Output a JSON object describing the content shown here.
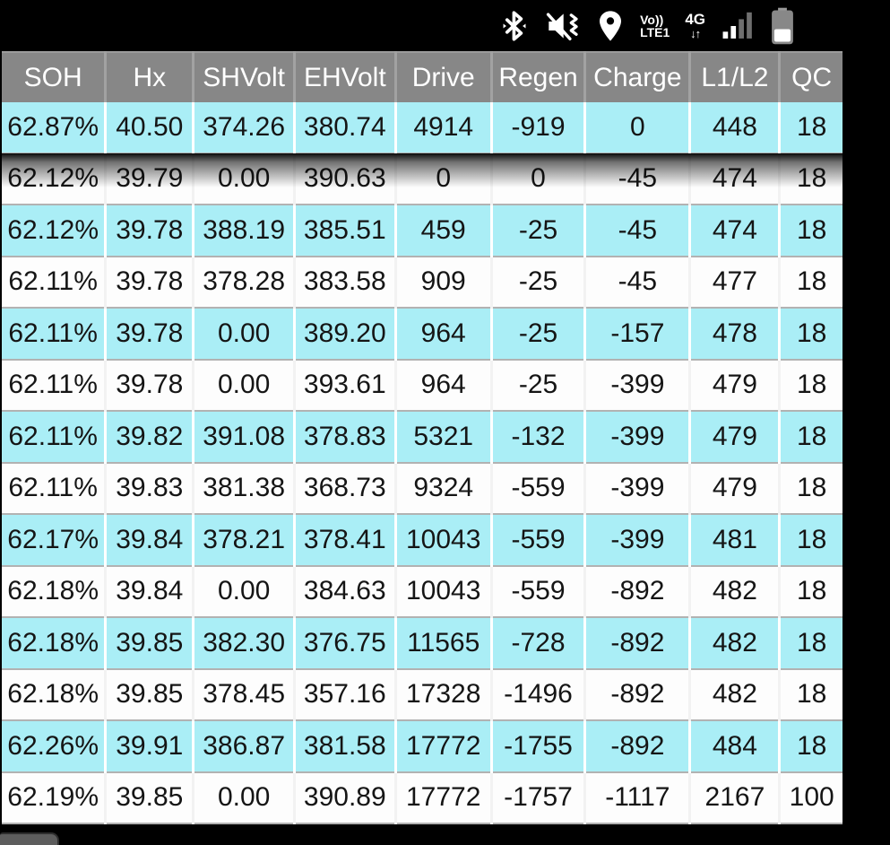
{
  "status_bar": {
    "icons": [
      "bluetooth-icon",
      "vibrate-mute-icon",
      "location-icon",
      "volte-icon",
      "network-4g-icon",
      "signal-strength-icon",
      "battery-icon"
    ],
    "volte_top": "Vo))",
    "volte_bottom": "LTE1",
    "network_label": "4G",
    "network_arrows": "↓↑"
  },
  "table": {
    "columns": [
      "SOH",
      "Hx",
      "SHVolt",
      "EHVolt",
      "Drive",
      "Regen",
      "Charge",
      "L1/L2",
      "QC"
    ],
    "rows": [
      [
        "62.87%",
        "40.50",
        "374.26",
        "380.74",
        "4914",
        "-919",
        "0",
        "448",
        "18"
      ],
      [
        "62.12%",
        "39.79",
        "0.00",
        "390.63",
        "0",
        "0",
        "-45",
        "474",
        "18"
      ],
      [
        "62.12%",
        "39.78",
        "388.19",
        "385.51",
        "459",
        "-25",
        "-45",
        "474",
        "18"
      ],
      [
        "62.11%",
        "39.78",
        "378.28",
        "383.58",
        "909",
        "-25",
        "-45",
        "477",
        "18"
      ],
      [
        "62.11%",
        "39.78",
        "0.00",
        "389.20",
        "964",
        "-25",
        "-157",
        "478",
        "18"
      ],
      [
        "62.11%",
        "39.78",
        "0.00",
        "393.61",
        "964",
        "-25",
        "-399",
        "479",
        "18"
      ],
      [
        "62.11%",
        "39.82",
        "391.08",
        "378.83",
        "5321",
        "-132",
        "-399",
        "479",
        "18"
      ],
      [
        "62.11%",
        "39.83",
        "381.38",
        "368.73",
        "9324",
        "-559",
        "-399",
        "479",
        "18"
      ],
      [
        "62.17%",
        "39.84",
        "378.21",
        "378.41",
        "10043",
        "-559",
        "-399",
        "481",
        "18"
      ],
      [
        "62.18%",
        "39.84",
        "0.00",
        "384.63",
        "10043",
        "-559",
        "-892",
        "482",
        "18"
      ],
      [
        "62.18%",
        "39.85",
        "382.30",
        "376.75",
        "11565",
        "-728",
        "-892",
        "482",
        "18"
      ],
      [
        "62.18%",
        "39.85",
        "378.45",
        "357.16",
        "17328",
        "-1496",
        "-892",
        "482",
        "18"
      ],
      [
        "62.26%",
        "39.91",
        "386.87",
        "381.58",
        "17772",
        "-1755",
        "-892",
        "484",
        "18"
      ],
      [
        "62.19%",
        "39.85",
        "0.00",
        "390.89",
        "17772",
        "-1757",
        "-1117",
        "2167",
        "100"
      ]
    ],
    "colors": {
      "row_alt_cyan": "#aaeef6",
      "row_base_white": "#fdfdfd",
      "header_bg": "#878787",
      "header_text": "#ffffff",
      "cell_text": "#151515",
      "status_bar_bg": "#000000"
    }
  }
}
